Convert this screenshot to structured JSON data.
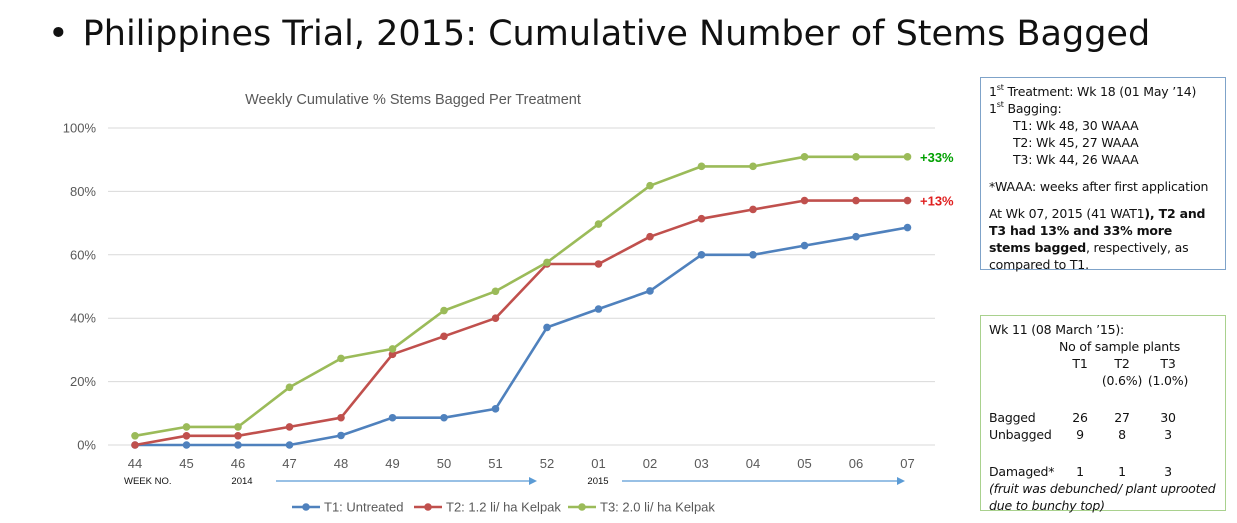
{
  "slide": {
    "bullet": "•",
    "title": "Philippines Trial, 2015: Cumulative Number of Stems Bagged"
  },
  "chart_data": {
    "type": "line",
    "title": "Weekly Cumulative  % Stems Bagged Per Treatment",
    "categories": [
      "44",
      "45",
      "46",
      "47",
      "48",
      "49",
      "50",
      "51",
      "52",
      "01",
      "02",
      "03",
      "04",
      "05",
      "06",
      "07"
    ],
    "ylim": [
      0,
      100
    ],
    "yticks": [
      "0%",
      "20%",
      "40%",
      "60%",
      "80%",
      "100%"
    ],
    "ytick_values": [
      0,
      20,
      40,
      60,
      80,
      100
    ],
    "grid": true,
    "week_label": "WEEK NO.",
    "year_labels": [
      "2014",
      "2015"
    ],
    "series": [
      {
        "name": "T1: Untreated",
        "color": "#4f81bd",
        "values": [
          0,
          0,
          0,
          0,
          3,
          8.6,
          8.6,
          11.4,
          37.1,
          42.9,
          48.6,
          60,
          60,
          62.9,
          65.7,
          68.6
        ]
      },
      {
        "name": "T2: 1.2 li/ ha Kelpak",
        "color": "#c0504d",
        "values": [
          0,
          2.9,
          2.9,
          5.7,
          8.6,
          28.6,
          34.3,
          40,
          57.1,
          57.1,
          65.7,
          71.4,
          74.3,
          77.1,
          77.1,
          77.1
        ]
      },
      {
        "name": "T3: 2.0 li/ ha Kelpak",
        "color": "#9bbb59",
        "values": [
          2.9,
          5.7,
          5.7,
          18.2,
          27.3,
          30.3,
          42.4,
          48.5,
          57.6,
          69.7,
          81.8,
          87.9,
          87.9,
          90.9,
          90.9,
          90.9
        ]
      }
    ],
    "annotations": [
      {
        "text": "+33%",
        "color": "#00a000",
        "series": 2
      },
      {
        "text": "+13%",
        "color": "#e02020",
        "series": 1
      }
    ],
    "legend_position": "bottom"
  },
  "box1": {
    "line1_sup": "st",
    "line1_pre": "1",
    "line1_text": " Treatment: Wk 18 (01 May ’14)",
    "line2_pre": "1",
    "line2_sup": "st",
    "line2_text": " Bagging:",
    "t1": "T1:  Wk 48, 30 WAAA",
    "t2": "T2:  Wk 45, 27 WAAA",
    "t3": "T3:  Wk 44, 26 WAAA",
    "waaa_note": "*WAAA: weeks after first application",
    "summary_pre": "At Wk 07, 2015 (41 WAT1",
    "summary_bold": "), T2 and T3 had 13% and 33% more stems bagged",
    "summary_post": ", respectively,  as compared to T1."
  },
  "box2": {
    "header": "Wk 11 (08 March ’15):",
    "subheader": "No of sample plants",
    "cols": [
      "",
      "T1",
      "T2",
      "T3"
    ],
    "pcts": [
      "",
      "",
      "(0.6%)",
      "(1.0%)"
    ],
    "rows": [
      [
        "Bagged",
        "26",
        "27",
        "30"
      ],
      [
        "Unbagged",
        "9",
        "8",
        "3"
      ]
    ],
    "damaged": [
      "Damaged*",
      "1",
      "1",
      "3"
    ],
    "damaged_note": "(fruit was debunched/ plant uprooted due to bunchy top)"
  }
}
